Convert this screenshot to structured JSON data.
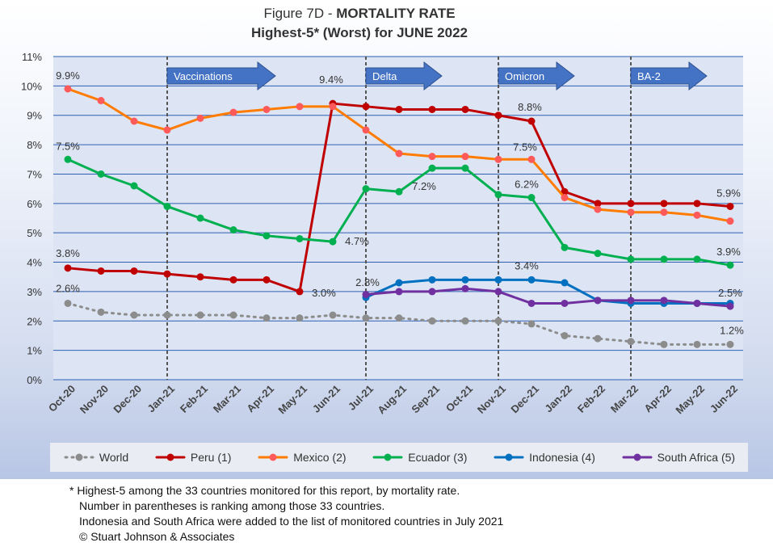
{
  "header": {
    "figure": "Figure 7D",
    "subject": "MORTALITY RATE",
    "subtitle": "Highest-5* (Worst) for JUNE 2022"
  },
  "footnotes": [
    "* Highest-5 among the 33 countries monitored for this report, by mortality rate.",
    "Number in parentheses is ranking among those 33 countries.",
    "Indonesia and South Africa were added to the list of monitored countries in July 2021",
    "© Stuart Johnson & Associates"
  ],
  "chart_data": {
    "type": "line",
    "title": "Figure 7D - MORTALITY RATE",
    "subtitle": "Highest-5* (Worst) for JUNE 2022",
    "categories": [
      "Oct-20",
      "Nov-20",
      "Dec-20",
      "Jan-21",
      "Feb-21",
      "Mar-21",
      "Apr-21",
      "May-21",
      "Jun-21",
      "Jul-21",
      "Aug-21",
      "Sep-21",
      "Oct-21",
      "Nov-21",
      "Dec-21",
      "Jan-22",
      "Feb-22",
      "Mar-22",
      "Apr-22",
      "May-22",
      "Jun-22"
    ],
    "ylim": [
      0,
      11
    ],
    "yticks": [
      "0%",
      "1%",
      "2%",
      "3%",
      "4%",
      "5%",
      "6%",
      "7%",
      "8%",
      "9%",
      "10%",
      "11%"
    ],
    "grid": true,
    "legend_position": "bottom",
    "series": [
      {
        "name": "World",
        "color": "#8c8c8c",
        "dashed": true,
        "values": [
          2.6,
          2.3,
          2.2,
          2.2,
          2.2,
          2.2,
          2.1,
          2.1,
          2.2,
          2.1,
          2.1,
          2.0,
          2.0,
          2.0,
          1.9,
          1.5,
          1.4,
          1.3,
          1.2,
          1.2,
          1.2
        ]
      },
      {
        "name": "Peru (1)",
        "color": "#c00000",
        "values": [
          3.8,
          3.7,
          3.7,
          3.6,
          3.5,
          3.4,
          3.4,
          3.0,
          9.4,
          9.3,
          9.2,
          9.2,
          9.2,
          9.0,
          8.8,
          6.4,
          6.0,
          6.0,
          6.0,
          6.0,
          5.9
        ]
      },
      {
        "name": "Mexico (2)",
        "color": "#ff7c00",
        "marker_color": "#ff5a5a",
        "values": [
          9.9,
          9.5,
          8.8,
          8.5,
          8.9,
          9.1,
          9.2,
          9.3,
          9.3,
          8.5,
          7.7,
          7.6,
          7.6,
          7.5,
          7.5,
          6.2,
          5.8,
          5.7,
          5.7,
          5.6,
          5.4
        ]
      },
      {
        "name": "Ecuador (3)",
        "color": "#00b050",
        "values": [
          7.5,
          7.0,
          6.6,
          5.9,
          5.5,
          5.1,
          4.9,
          4.8,
          4.7,
          6.5,
          6.4,
          7.2,
          7.2,
          6.3,
          6.2,
          4.5,
          4.3,
          4.1,
          4.1,
          4.1,
          3.9
        ]
      },
      {
        "name": "Indonesia (4)",
        "color": "#0070c0",
        "values": [
          null,
          null,
          null,
          null,
          null,
          null,
          null,
          null,
          null,
          2.8,
          3.3,
          3.4,
          3.4,
          3.4,
          3.4,
          3.3,
          2.7,
          2.6,
          2.6,
          2.6,
          2.6
        ]
      },
      {
        "name": "South Africa (5)",
        "color": "#7030a0",
        "values": [
          null,
          null,
          null,
          null,
          null,
          null,
          null,
          null,
          null,
          2.9,
          3.0,
          3.0,
          3.1,
          3.0,
          2.6,
          2.6,
          2.7,
          2.7,
          2.7,
          2.6,
          2.5
        ]
      }
    ],
    "data_labels": [
      {
        "text": "9.9%",
        "x": "Oct-20",
        "y": 9.9
      },
      {
        "text": "7.5%",
        "x": "Oct-20",
        "y": 7.5
      },
      {
        "text": "3.8%",
        "x": "Oct-20",
        "y": 3.8
      },
      {
        "text": "2.6%",
        "x": "Oct-20",
        "y": 2.6
      },
      {
        "text": "3.0%",
        "x": "May-21",
        "y": 3.0
      },
      {
        "text": "9.4%",
        "x": "Jun-21",
        "y": 9.4
      },
      {
        "text": "4.7%",
        "x": "Jun-21",
        "y": 4.7
      },
      {
        "text": "2.8%",
        "x": "Jul-21",
        "y": 2.8
      },
      {
        "text": "7.2%",
        "x": "Sep-21",
        "y": 7.2
      },
      {
        "text": "8.8%",
        "x": "Dec-21",
        "y": 8.8
      },
      {
        "text": "7.5%",
        "x": "Dec-21",
        "y": 7.5
      },
      {
        "text": "6.2%",
        "x": "Dec-21",
        "y": 6.2
      },
      {
        "text": "3.4%",
        "x": "Dec-21",
        "y": 3.4
      },
      {
        "text": "5.9%",
        "x": "Jun-22",
        "y": 5.9
      },
      {
        "text": "3.9%",
        "x": "Jun-22",
        "y": 3.9
      },
      {
        "text": "2.5%",
        "x": "Jun-22",
        "y": 2.5
      },
      {
        "text": "1.2%",
        "x": "Jun-22",
        "y": 1.2
      }
    ],
    "annotations": [
      {
        "text": "Vaccinations",
        "x": "Jan-21"
      },
      {
        "text": "Delta",
        "x": "Jul-21"
      },
      {
        "text": "Omicron",
        "x": "Nov-21"
      },
      {
        "text": "BA-2",
        "x": "Mar-22"
      }
    ]
  }
}
